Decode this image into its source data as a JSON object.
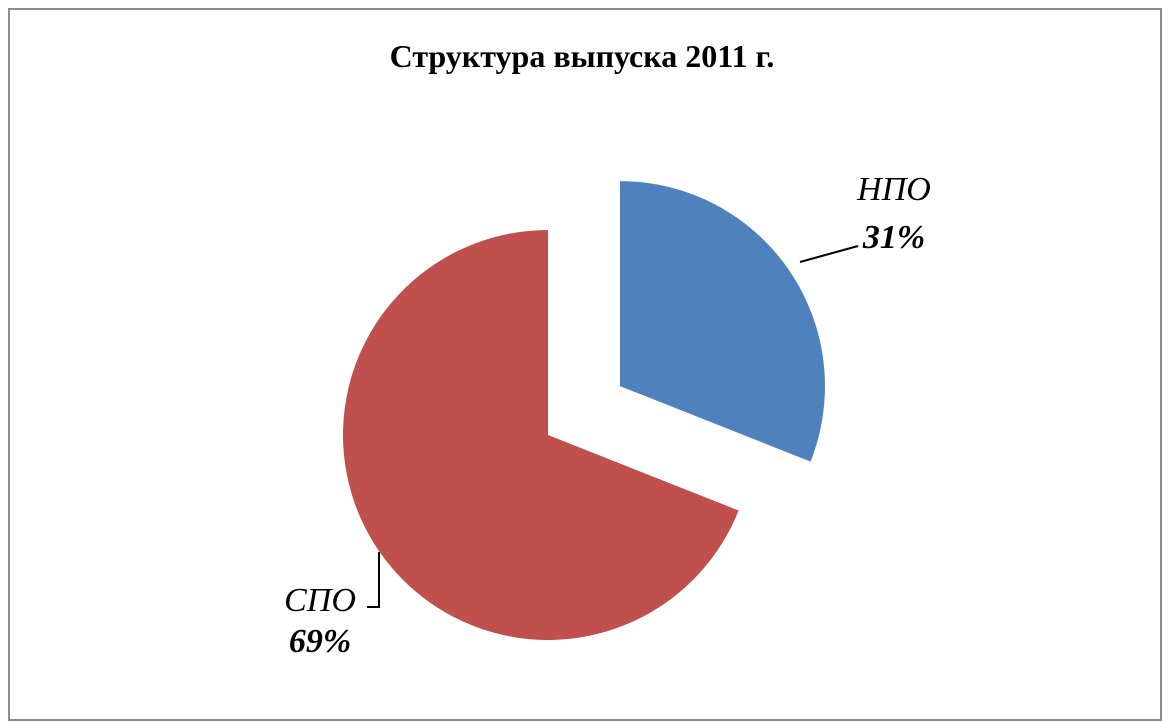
{
  "chart_data": {
    "type": "pie",
    "title": "Структура выпуска 2011 г.",
    "slices": [
      {
        "label": "НПО",
        "value": 31,
        "value_label": "31%",
        "color": "#4F81BD",
        "exploded": true
      },
      {
        "label": "СПО",
        "value": 69,
        "value_label": "69%",
        "color": "#C0504D",
        "exploded": false
      }
    ],
    "legend": false
  }
}
